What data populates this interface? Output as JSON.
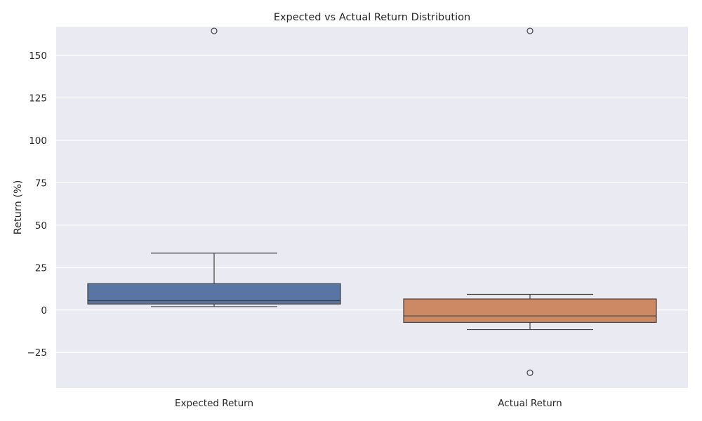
{
  "chart_data": {
    "type": "box",
    "title": "Expected vs Actual Return Distribution",
    "xlabel": "",
    "ylabel": "Return (%)",
    "ylim": [
      -46,
      167
    ],
    "yticks": [
      -25,
      0,
      25,
      50,
      75,
      100,
      125,
      150
    ],
    "grid": true,
    "categories": [
      "Expected Return",
      "Actual Return"
    ],
    "boxes": [
      {
        "category": "Expected Return",
        "color": "#5875a4",
        "whisker_low": 2.0,
        "q1": 3.5,
        "median": 5.5,
        "q3": 15.5,
        "whisker_high": 33.5,
        "outliers": [
          164.5
        ]
      },
      {
        "category": "Actual Return",
        "color": "#cc8963",
        "whisker_low": -11.5,
        "q1": -7.3,
        "median": -3.5,
        "q3": 6.5,
        "whisker_high": 9.2,
        "outliers": [
          164.5,
          -37.0
        ]
      }
    ]
  },
  "colors": {
    "plot_background": "#eaeaf2",
    "grid": "#ffffff",
    "edge": "#3f3f3f"
  }
}
